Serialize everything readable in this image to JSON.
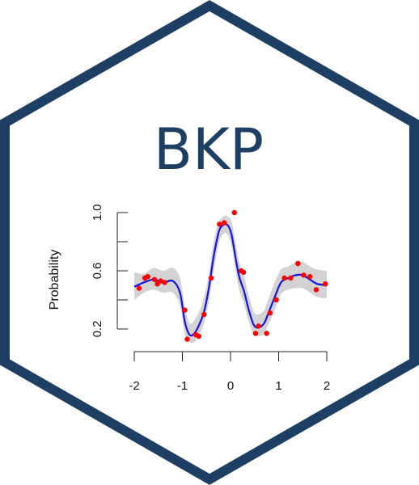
{
  "logo": {
    "title": "BKP",
    "colors": {
      "hexagon": "#1d3f63",
      "title": "#1d3f63",
      "curve": "#1414dc",
      "points": "#ff0000",
      "band": "#d3d3d3"
    }
  },
  "chart_data": {
    "type": "line",
    "ylabel": "Probability",
    "xlabel": "",
    "xlim": [
      -2,
      2
    ],
    "ylim": [
      0.2,
      1.0
    ],
    "x_ticks": [
      "-2",
      "-1",
      "0",
      "1",
      "2"
    ],
    "y_ticks": [
      "0.2",
      "0.6",
      "1.0"
    ],
    "grid": false,
    "series": [
      {
        "kind": "mean-curve",
        "color": "#1414dc",
        "x": [
          -2.0,
          -1.8,
          -1.6,
          -1.4,
          -1.2,
          -1.05,
          -0.95,
          -0.85,
          -0.75,
          -0.65,
          -0.55,
          -0.45,
          -0.35,
          -0.25,
          -0.2,
          -0.12,
          -0.05,
          0.02,
          0.1,
          0.18,
          0.28,
          0.38,
          0.48,
          0.58,
          0.7,
          0.8,
          0.92,
          1.05,
          1.2,
          1.35,
          1.5,
          1.65,
          1.8,
          2.0
        ],
        "y": [
          0.49,
          0.52,
          0.54,
          0.52,
          0.53,
          0.45,
          0.25,
          0.16,
          0.17,
          0.23,
          0.32,
          0.48,
          0.7,
          0.86,
          0.9,
          0.92,
          0.91,
          0.85,
          0.7,
          0.56,
          0.46,
          0.33,
          0.23,
          0.21,
          0.24,
          0.32,
          0.42,
          0.52,
          0.55,
          0.57,
          0.57,
          0.54,
          0.51,
          0.5
        ],
        "upper": [
          0.59,
          0.58,
          0.62,
          0.6,
          0.62,
          0.55,
          0.35,
          0.24,
          0.26,
          0.32,
          0.42,
          0.58,
          0.8,
          0.93,
          0.96,
          0.98,
          0.97,
          0.94,
          0.8,
          0.66,
          0.56,
          0.43,
          0.32,
          0.3,
          0.33,
          0.42,
          0.52,
          0.61,
          0.63,
          0.66,
          0.66,
          0.63,
          0.61,
          0.6
        ],
        "lower": [
          0.4,
          0.45,
          0.47,
          0.45,
          0.45,
          0.36,
          0.17,
          0.11,
          0.11,
          0.16,
          0.24,
          0.39,
          0.6,
          0.78,
          0.83,
          0.86,
          0.84,
          0.77,
          0.61,
          0.47,
          0.37,
          0.25,
          0.16,
          0.15,
          0.17,
          0.24,
          0.33,
          0.44,
          0.47,
          0.48,
          0.48,
          0.45,
          0.42,
          0.41
        ]
      },
      {
        "kind": "observations",
        "color": "#ff0000",
        "x": [
          -1.9,
          -1.78,
          -1.72,
          -1.58,
          -1.52,
          -1.45,
          -1.37,
          -0.95,
          -0.9,
          -0.72,
          -0.66,
          -0.55,
          -0.4,
          -0.23,
          -0.13,
          0.08,
          0.22,
          0.27,
          0.52,
          0.58,
          0.75,
          0.82,
          0.95,
          1.12,
          1.25,
          1.4,
          1.52,
          1.65,
          1.78,
          1.97
        ],
        "y": [
          0.48,
          0.55,
          0.56,
          0.54,
          0.51,
          0.53,
          0.52,
          0.33,
          0.13,
          0.16,
          0.15,
          0.3,
          0.55,
          0.92,
          0.93,
          1.0,
          0.6,
          0.59,
          0.17,
          0.22,
          0.17,
          0.31,
          0.4,
          0.55,
          0.55,
          0.65,
          0.57,
          0.56,
          0.47,
          0.51
        ]
      }
    ]
  }
}
